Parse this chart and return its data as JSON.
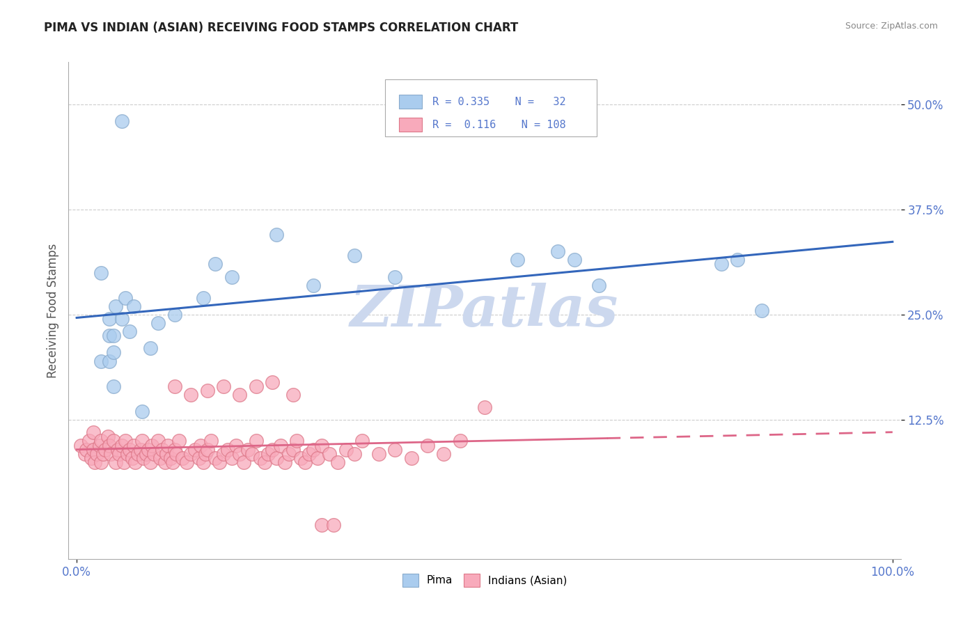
{
  "title": "PIMA VS INDIAN (ASIAN) RECEIVING FOOD STAMPS CORRELATION CHART",
  "source": "Source: ZipAtlas.com",
  "ylabel": "Receiving Food Stamps",
  "pima_R": 0.335,
  "pima_N": 32,
  "indian_R": 0.116,
  "indian_N": 108,
  "pima_color": "#aaccee",
  "pima_edge_color": "#88aacc",
  "indian_color": "#f8aabb",
  "indian_edge_color": "#dd7788",
  "pima_line_color": "#3366bb",
  "indian_line_color": "#dd6688",
  "watermark": "ZIPatlas",
  "watermark_color": "#ccd8ee",
  "background_color": "#ffffff",
  "grid_color": "#cccccc",
  "title_color": "#222222",
  "axis_label_color": "#5577cc",
  "pima_x": [
    0.03,
    0.055,
    0.03,
    0.04,
    0.045,
    0.045,
    0.04,
    0.04,
    0.045,
    0.048,
    0.055,
    0.06,
    0.065,
    0.07,
    0.08,
    0.09,
    0.1,
    0.12,
    0.155,
    0.17,
    0.19,
    0.245,
    0.29,
    0.34,
    0.39,
    0.54,
    0.59,
    0.61,
    0.64,
    0.79,
    0.81,
    0.84
  ],
  "pima_y": [
    0.195,
    0.48,
    0.3,
    0.195,
    0.165,
    0.205,
    0.225,
    0.245,
    0.225,
    0.26,
    0.245,
    0.27,
    0.23,
    0.26,
    0.135,
    0.21,
    0.24,
    0.25,
    0.27,
    0.31,
    0.295,
    0.345,
    0.285,
    0.32,
    0.295,
    0.315,
    0.325,
    0.315,
    0.285,
    0.31,
    0.315,
    0.255
  ],
  "indian_x": [
    0.005,
    0.01,
    0.012,
    0.015,
    0.018,
    0.02,
    0.02,
    0.022,
    0.025,
    0.028,
    0.03,
    0.03,
    0.032,
    0.035,
    0.038,
    0.04,
    0.042,
    0.045,
    0.048,
    0.05,
    0.052,
    0.055,
    0.058,
    0.06,
    0.062,
    0.065,
    0.068,
    0.07,
    0.072,
    0.075,
    0.078,
    0.08,
    0.082,
    0.085,
    0.088,
    0.09,
    0.092,
    0.095,
    0.1,
    0.102,
    0.105,
    0.108,
    0.11,
    0.112,
    0.115,
    0.118,
    0.12,
    0.122,
    0.125,
    0.13,
    0.135,
    0.14,
    0.145,
    0.15,
    0.152,
    0.155,
    0.158,
    0.16,
    0.165,
    0.17,
    0.175,
    0.18,
    0.185,
    0.19,
    0.195,
    0.2,
    0.205,
    0.21,
    0.215,
    0.22,
    0.225,
    0.23,
    0.235,
    0.24,
    0.245,
    0.25,
    0.255,
    0.26,
    0.265,
    0.27,
    0.275,
    0.28,
    0.285,
    0.29,
    0.295,
    0.3,
    0.31,
    0.32,
    0.33,
    0.34,
    0.35,
    0.37,
    0.39,
    0.41,
    0.43,
    0.45,
    0.47,
    0.5,
    0.3,
    0.315,
    0.265,
    0.24,
    0.22,
    0.2,
    0.18,
    0.16,
    0.14,
    0.12
  ],
  "indian_y": [
    0.095,
    0.085,
    0.09,
    0.1,
    0.08,
    0.09,
    0.11,
    0.075,
    0.085,
    0.095,
    0.1,
    0.075,
    0.085,
    0.09,
    0.105,
    0.095,
    0.085,
    0.1,
    0.075,
    0.09,
    0.085,
    0.095,
    0.075,
    0.1,
    0.085,
    0.09,
    0.08,
    0.095,
    0.075,
    0.085,
    0.09,
    0.1,
    0.08,
    0.085,
    0.09,
    0.075,
    0.095,
    0.085,
    0.1,
    0.08,
    0.09,
    0.075,
    0.085,
    0.095,
    0.08,
    0.075,
    0.09,
    0.085,
    0.1,
    0.08,
    0.075,
    0.085,
    0.09,
    0.08,
    0.095,
    0.075,
    0.085,
    0.09,
    0.1,
    0.08,
    0.075,
    0.085,
    0.09,
    0.08,
    0.095,
    0.085,
    0.075,
    0.09,
    0.085,
    0.1,
    0.08,
    0.075,
    0.085,
    0.09,
    0.08,
    0.095,
    0.075,
    0.085,
    0.09,
    0.1,
    0.08,
    0.075,
    0.085,
    0.09,
    0.08,
    0.095,
    0.085,
    0.075,
    0.09,
    0.085,
    0.1,
    0.085,
    0.09,
    0.08,
    0.095,
    0.085,
    0.1,
    0.14,
    0.0,
    0.0,
    0.155,
    0.17,
    0.165,
    0.155,
    0.165,
    0.16,
    0.155,
    0.165
  ],
  "xlim": [
    -0.01,
    1.01
  ],
  "ylim": [
    -0.04,
    0.55
  ],
  "ytick_positions": [
    0.125,
    0.25,
    0.375,
    0.5
  ],
  "ytick_labels": [
    "12.5%",
    "25.0%",
    "37.5%",
    "50.0%"
  ],
  "xtick_positions": [
    0.0,
    1.0
  ],
  "xtick_labels": [
    "0.0%",
    "100.0%"
  ]
}
